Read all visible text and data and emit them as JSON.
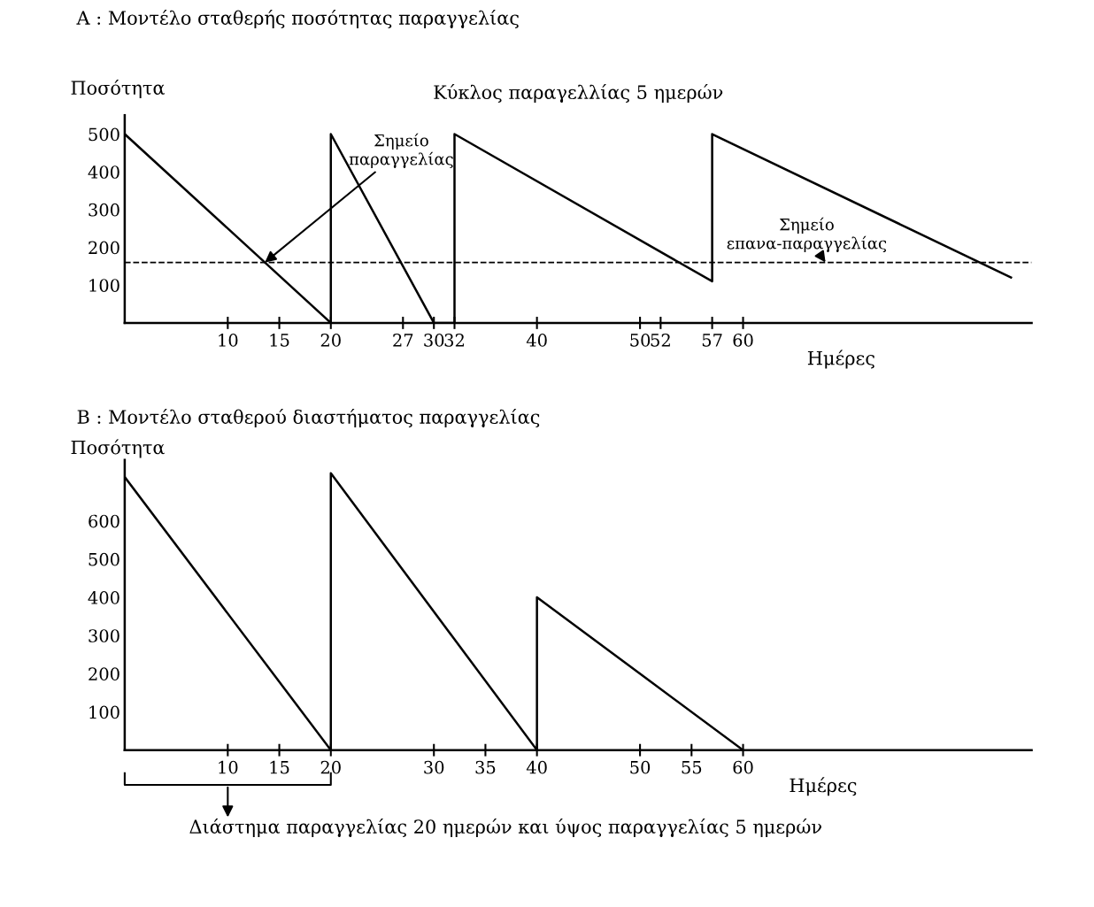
{
  "chart_data": [
    {
      "type": "line",
      "title": "A : Μοντέλο σταθερής ποσότητας παραγγελίας",
      "ylabel": "Ποσότητα",
      "xlabel": "Ημέρες",
      "series": [
        {
          "color": "#000000",
          "x": [
            0,
            20,
            20,
            30,
            32,
            32,
            57,
            57,
            86
          ],
          "values": [
            500,
            0,
            500,
            0,
            0,
            500,
            110,
            500,
            120
          ]
        }
      ],
      "xlim": [
        0,
        88
      ],
      "xticks": [
        10,
        15,
        20,
        27,
        30,
        32,
        40,
        50,
        52,
        57,
        60
      ],
      "ylim": [
        0,
        550
      ],
      "yticks": [
        100,
        200,
        300,
        400,
        500
      ],
      "ref_lines": [
        {
          "axis": "y",
          "value": 160,
          "color": "#000000",
          "line_style": "dashed"
        }
      ],
      "annotations": [
        "Κύκλος παραγελλίας 5 ημερών",
        {
          "text": "Σημείο\nπαραγγελίας",
          "x": 13.6,
          "y": 160
        },
        {
          "text": "Σημείο\nεπανα-παραγγελίας",
          "x": 68,
          "y": 160
        }
      ],
      "grid": false,
      "marker": "none",
      "line_style": "solid"
    },
    {
      "type": "line",
      "title": "B : Μοντέλο σταθερού διαστήματος παραγγελίας",
      "ylabel": "Ποσότητα",
      "xlabel": "Ημέρες",
      "series": [
        {
          "color": "#000000",
          "x": [
            0,
            20,
            20,
            40,
            40,
            60
          ],
          "values": [
            715,
            0,
            725,
            0,
            400,
            0
          ]
        }
      ],
      "xlim": [
        0,
        88
      ],
      "xticks": [
        10,
        15,
        20,
        30,
        35,
        40,
        50,
        55,
        60
      ],
      "ylim": [
        0,
        760
      ],
      "yticks": [
        100,
        200,
        300,
        400,
        500,
        600
      ],
      "annotations": [
        "Διάστημα παραγγελίας 20 ημερών και ύψος παραγγελίας 5 ημερών"
      ],
      "grid": false,
      "marker": "none",
      "line_style": "solid"
    }
  ]
}
